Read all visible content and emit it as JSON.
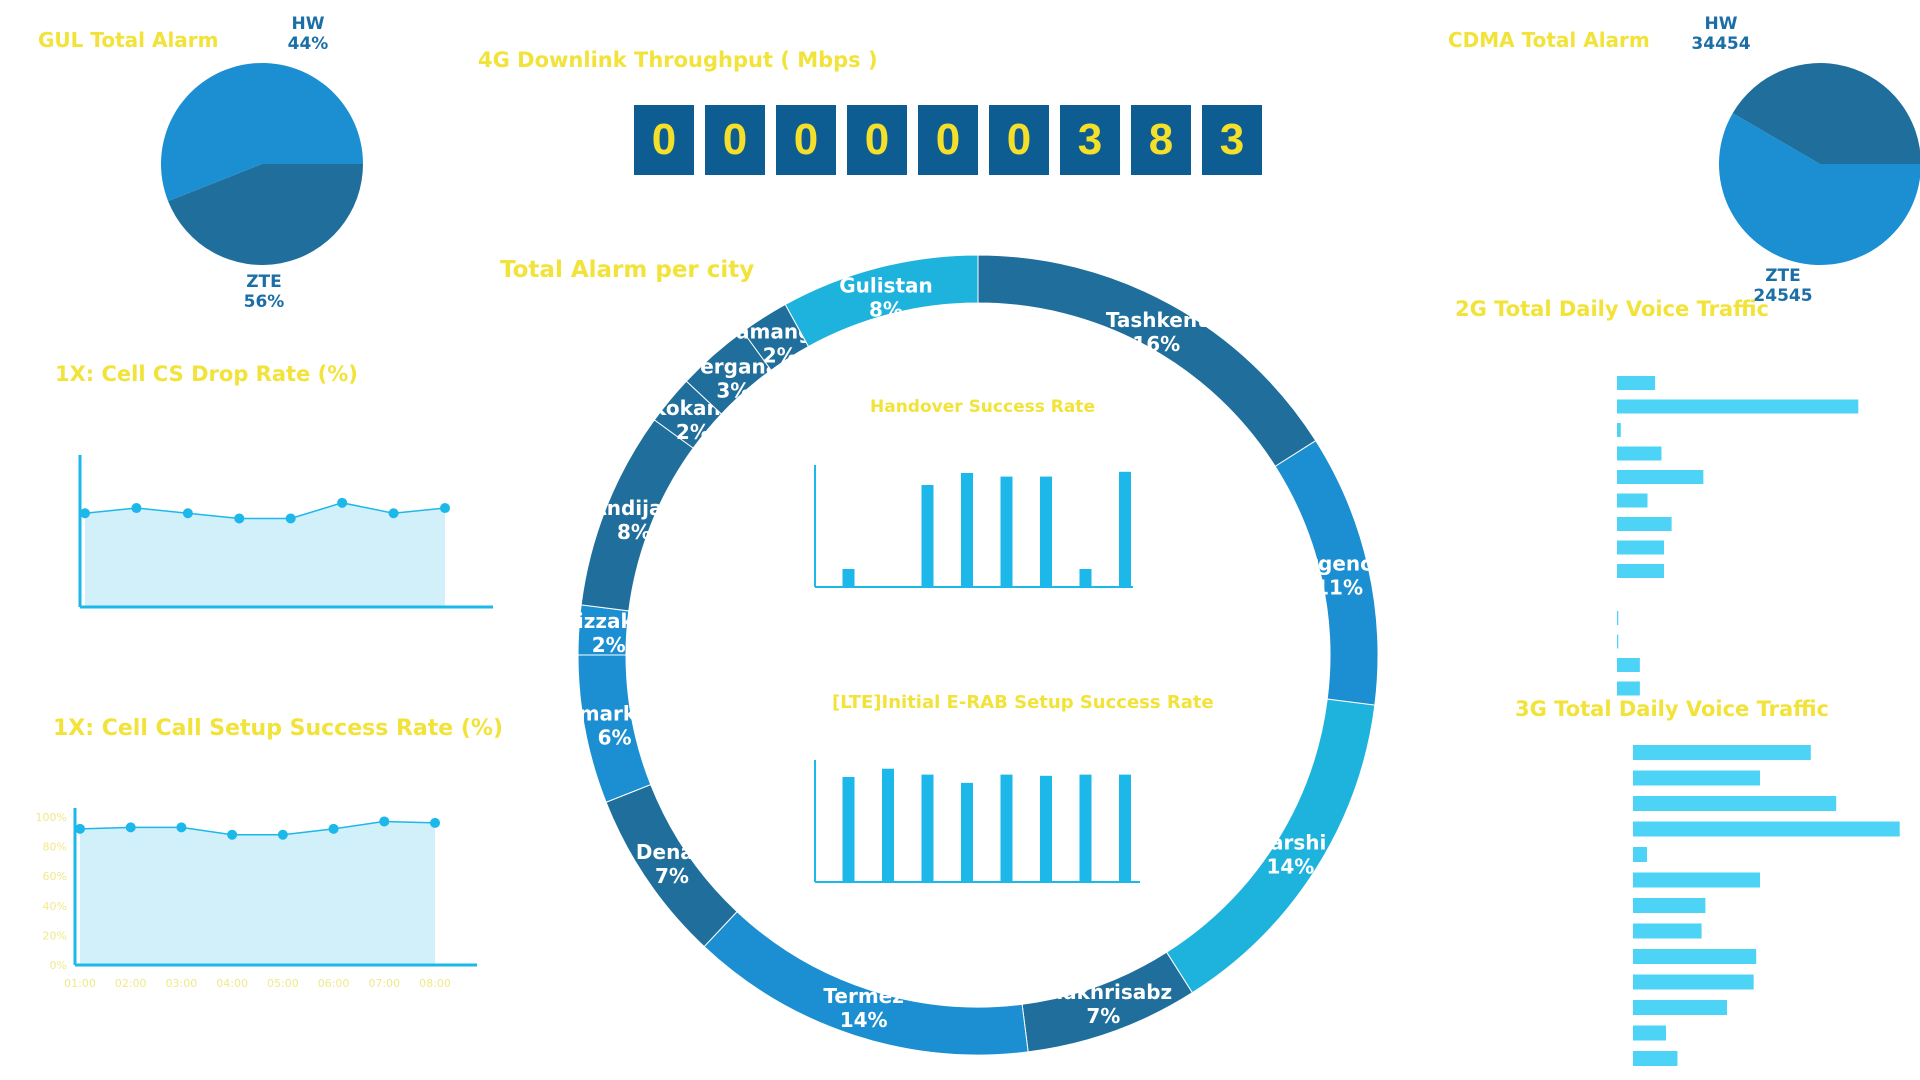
{
  "titles": {
    "gul": "GUL Total Alarm",
    "throughput": "4G Downlink Throughput ( Mbps )",
    "cdma": "CDMA Total Alarm",
    "city": "Total Alarm per city",
    "g2_voice": "2G Total Daily Voice Traffic",
    "g3_voice": "3G Total Daily Voice Traffic",
    "cs_drop": "1X: Cell CS Drop Rate (%)",
    "call_setup": "1X: Cell Call Setup Success Rate (%)",
    "handover": "Handover Success Rate",
    "erab": "[LTE]Initial E-RAB Setup Success Rate"
  },
  "throughput": {
    "digits": [
      "0",
      "0",
      "0",
      "0",
      "0",
      "0",
      "3",
      "8",
      "3"
    ]
  },
  "colors": {
    "dark": "#1f6e9c",
    "mid": "#1b8fd1",
    "light": "#1db3dc",
    "bar": "#1cb8ea",
    "hbar": "#4dd3f5",
    "title": "#f2e33a"
  },
  "chart_data": [
    {
      "type": "pie",
      "title": "GUL Total Alarm",
      "labels": [
        "HW",
        "ZTE"
      ],
      "values": [
        44,
        56
      ],
      "value_labels": [
        "44%",
        "56%"
      ]
    },
    {
      "type": "pie",
      "title": "CDMA Total Alarm",
      "labels": [
        "HW",
        "ZTE"
      ],
      "values": [
        34454,
        24545
      ],
      "value_labels": [
        "34454",
        "24545"
      ]
    },
    {
      "type": "pie",
      "subtype": "donut",
      "title": "Total Alarm per city",
      "labels": [
        "Tashkent",
        "Urgench",
        "Karshi",
        "Shakhrisabz",
        "Termez",
        "Denau",
        "Samarkand",
        "Jizzakh",
        "Andijan",
        "Kokand",
        "Fergana",
        "Namangan",
        "Gulistan"
      ],
      "display_labels": [
        "Tashkent",
        "Urgench",
        "Karshi",
        "Shakhrisabz",
        "Termez",
        "Denau",
        "Samarkand",
        "Jizzakh",
        "Andijan",
        "Kokand",
        "Fergana",
        "Namangan",
        "Gulistan"
      ],
      "values": [
        16,
        11,
        14,
        7,
        14,
        7,
        6,
        2,
        8,
        2,
        3,
        2,
        8
      ],
      "value_labels": [
        "16%",
        "11%",
        "14%",
        "7%",
        "14%",
        "7%",
        "6%",
        "2%",
        "8%",
        "2%",
        "3%",
        "2%",
        "8%"
      ]
    },
    {
      "type": "area",
      "title": "1X: Cell CS Drop Rate (%)",
      "values": [
        0.9,
        0.95,
        0.9,
        0.85,
        0.85,
        1.0,
        0.9,
        0.95
      ],
      "ylim": [
        0,
        1.2
      ]
    },
    {
      "type": "area",
      "title": "1X: Cell Call Setup Success Rate (%)",
      "categories": [
        "01:00",
        "02:00",
        "03:00",
        "04:00",
        "05:00",
        "06:00",
        "07:00",
        "08:00"
      ],
      "values": [
        92,
        93,
        93,
        88,
        88,
        92,
        97,
        96
      ],
      "yticks": [
        "0%",
        "20%",
        "40%",
        "60%",
        "80%",
        "100%"
      ],
      "ylim": [
        0,
        100
      ]
    },
    {
      "type": "bar",
      "title": "Handover Success Rate",
      "values": [
        15,
        0,
        85,
        95,
        92,
        92,
        15,
        96
      ],
      "ylim": [
        0,
        100
      ]
    },
    {
      "type": "bar",
      "title": "[LTE]Initial E-RAB Setup Success Rate",
      "values": [
        89,
        96,
        91,
        84,
        91,
        90,
        91,
        91
      ],
      "ylim": [
        0,
        100
      ]
    },
    {
      "type": "bar",
      "orientation": "horizontal",
      "title": "2G Total Daily Voice Traffic",
      "values": [
        30,
        190,
        3,
        35,
        68,
        24,
        43,
        37,
        37,
        0,
        1,
        1,
        18,
        18
      ]
    },
    {
      "type": "bar",
      "orientation": "horizontal",
      "title": "3G Total Daily Voice Traffic",
      "values": [
        140,
        100,
        160,
        210,
        11,
        100,
        57,
        54,
        97,
        95,
        74,
        26,
        35
      ]
    }
  ]
}
